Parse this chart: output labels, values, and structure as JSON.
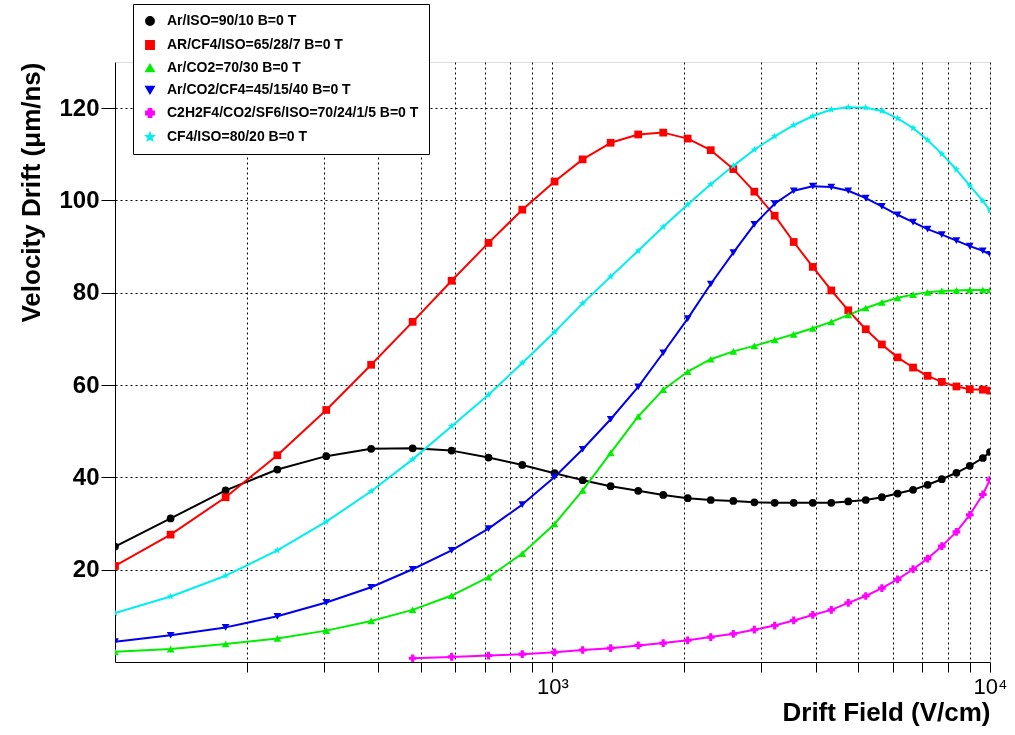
{
  "chart_data": {
    "type": "line",
    "xlabel": "Drift Field (V/cm)",
    "ylabel": "Velocity Drift (μm/ns)",
    "log": "x",
    "xlim": [
      100,
      10000
    ],
    "ylim": [
      0,
      130
    ],
    "xticks": [
      {
        "value": 200,
        "label": null
      },
      {
        "value": 300,
        "label": null
      },
      {
        "value": 400,
        "label": null
      },
      {
        "value": 500,
        "label": null
      },
      {
        "value": 600,
        "label": null
      },
      {
        "value": 700,
        "label": null
      },
      {
        "value": 800,
        "label": null
      },
      {
        "value": 900,
        "label": null
      },
      {
        "value": 1000,
        "label": "10³"
      },
      {
        "value": 2000,
        "label": null
      },
      {
        "value": 3000,
        "label": null
      },
      {
        "value": 4000,
        "label": null
      },
      {
        "value": 5000,
        "label": null
      },
      {
        "value": 6000,
        "label": null
      },
      {
        "value": 7000,
        "label": null
      },
      {
        "value": 8000,
        "label": null
      },
      {
        "value": 9000,
        "label": null
      },
      {
        "value": 10000,
        "label": "10⁴"
      }
    ],
    "yticks": [
      20,
      40,
      60,
      80,
      100,
      120
    ],
    "grid": true,
    "legend": "top left",
    "x": [
      100,
      134,
      179,
      235,
      304,
      385,
      479,
      588,
      714,
      853,
      1011,
      1172,
      1358,
      1570,
      1791,
      2037,
      2300,
      2590,
      2893,
      3220,
      3559,
      3935,
      4338,
      4743,
      5200,
      5660,
      6148,
      6670,
      7200,
      7760,
      8380,
      8990,
      9630,
      10000
    ],
    "series": [
      {
        "name": "Ar/ISO=90/10 B=0 T",
        "color": "#000000",
        "marker": "circle",
        "values": [
          25.0,
          31.1,
          37.2,
          41.7,
          44.6,
          46.2,
          46.3,
          45.8,
          44.3,
          42.7,
          40.9,
          39.4,
          38.1,
          37.1,
          36.2,
          35.5,
          35.1,
          34.9,
          34.6,
          34.5,
          34.5,
          34.5,
          34.5,
          34.8,
          35.1,
          35.7,
          36.5,
          37.3,
          38.4,
          39.6,
          41.0,
          42.5,
          44.2,
          45.5
        ]
      },
      {
        "name": "AR/CF4/ISO=65/28/7 B=0 T",
        "color": "#ff0000",
        "marker": "square",
        "values": [
          20.8,
          27.6,
          35.7,
          44.8,
          54.6,
          64.4,
          73.7,
          82.6,
          90.8,
          98.0,
          104.1,
          108.9,
          112.5,
          114.3,
          114.7,
          113.4,
          110.9,
          106.8,
          101.9,
          96.7,
          91.0,
          85.6,
          80.5,
          76.2,
          72.1,
          68.8,
          66.0,
          63.8,
          62.0,
          60.7,
          59.7,
          59.1,
          59.0,
          58.8
        ]
      },
      {
        "name": "Ar/CO2=70/30 B=0 T",
        "color": "#00ee00",
        "marker": "triangle",
        "values": [
          2.2,
          2.8,
          3.9,
          5.1,
          6.8,
          8.9,
          11.3,
          14.4,
          18.4,
          23.5,
          29.9,
          37.2,
          45.3,
          53.2,
          59.0,
          62.9,
          65.6,
          67.3,
          68.5,
          69.8,
          71.0,
          72.3,
          73.7,
          75.2,
          76.7,
          77.9,
          78.9,
          79.6,
          80.1,
          80.4,
          80.5,
          80.6,
          80.6,
          80.6
        ]
      },
      {
        "name": "Ar/CO2/CF4=45/15/40 B=0 T",
        "color": "#0000ee",
        "marker": "triangle-down",
        "values": [
          4.4,
          5.8,
          7.5,
          9.9,
          12.9,
          16.2,
          20.1,
          24.2,
          28.9,
          34.1,
          40.1,
          46.1,
          52.6,
          59.6,
          67.0,
          74.4,
          81.9,
          88.7,
          94.8,
          99.3,
          102.1,
          103.1,
          102.9,
          102.1,
          100.5,
          98.7,
          96.9,
          95.3,
          93.8,
          92.6,
          91.3,
          90.1,
          89.1,
          88.3
        ]
      },
      {
        "name": "C2H2F4/CO2/SF6/ISO=70/24/1/5 B=0 T",
        "color": "#ff00ff",
        "marker": "cross",
        "x": [
          479,
          588,
          714,
          853,
          1011,
          1172,
          1358,
          1570,
          1791,
          2037,
          2300,
          2590,
          2893,
          3220,
          3559,
          3935,
          4338,
          4743,
          5200,
          5660,
          6148,
          6670,
          7200,
          7760,
          8380,
          8990,
          9630,
          10000
        ],
        "values": [
          0.8,
          1.1,
          1.4,
          1.7,
          2.1,
          2.6,
          3.0,
          3.6,
          4.1,
          4.7,
          5.4,
          6.1,
          7.0,
          7.9,
          9.0,
          10.2,
          11.3,
          12.8,
          14.3,
          16.0,
          17.9,
          20.1,
          22.4,
          25.1,
          28.2,
          31.9,
          36.3,
          39.5
        ]
      },
      {
        "name": "CF4/ISO=80/20 B=0 T",
        "color": "#00eeee",
        "marker": "star",
        "values": [
          10.6,
          14.2,
          18.7,
          24.2,
          30.4,
          37.0,
          43.9,
          51.1,
          57.9,
          64.8,
          71.5,
          77.7,
          83.5,
          89.1,
          94.3,
          99.1,
          103.5,
          107.5,
          111.0,
          113.9,
          116.3,
          118.3,
          119.7,
          120.2,
          120.1,
          119.4,
          117.8,
          115.7,
          113.1,
          110.1,
          106.7,
          103.2,
          99.9,
          97.8
        ]
      }
    ]
  }
}
